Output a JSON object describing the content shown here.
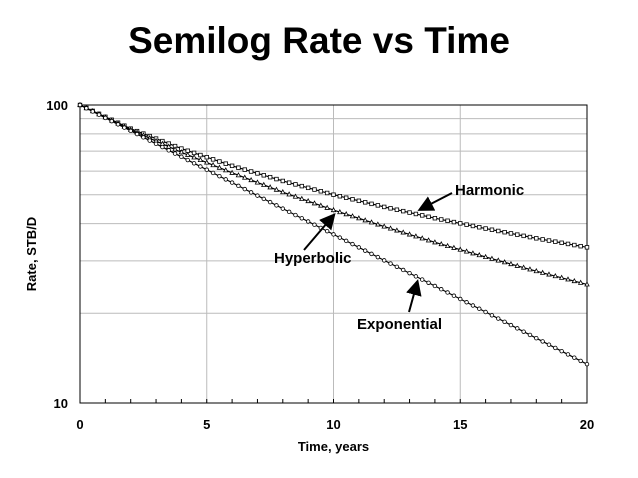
{
  "chart_data": {
    "type": "line",
    "title": "Semilog Rate vs Time",
    "xlabel": "Time, years",
    "ylabel": "Rate, STB/D",
    "xlim": [
      0,
      20
    ],
    "ylim": [
      10,
      100
    ],
    "y_scale": "log",
    "grid": true,
    "x_ticks": [
      "0",
      "5",
      "10",
      "15",
      "20"
    ],
    "y_ticks": [
      "10",
      "100"
    ],
    "x": [
      0,
      2,
      4,
      6,
      8,
      10,
      12,
      14,
      16,
      18,
      20
    ],
    "series": [
      {
        "name": "Harmonic",
        "marker": "square",
        "values": [
          100,
          83.3,
          71.4,
          62.5,
          55.6,
          50.0,
          45.5,
          41.7,
          38.5,
          35.7,
          33.3
        ]
      },
      {
        "name": "Hyperbolic",
        "marker": "triangle",
        "values": [
          100,
          82.6,
          69.4,
          59.2,
          51.0,
          44.4,
          39.1,
          34.6,
          30.9,
          27.7,
          25.0
        ]
      },
      {
        "name": "Exponential",
        "marker": "circle",
        "values": [
          100,
          81.9,
          67.0,
          54.9,
          44.9,
          36.8,
          30.1,
          24.7,
          20.2,
          16.5,
          13.5
        ]
      }
    ],
    "annotations": [
      {
        "text": "Harmonic"
      },
      {
        "text": "Hyperbolic"
      },
      {
        "text": "Exponential"
      }
    ]
  }
}
